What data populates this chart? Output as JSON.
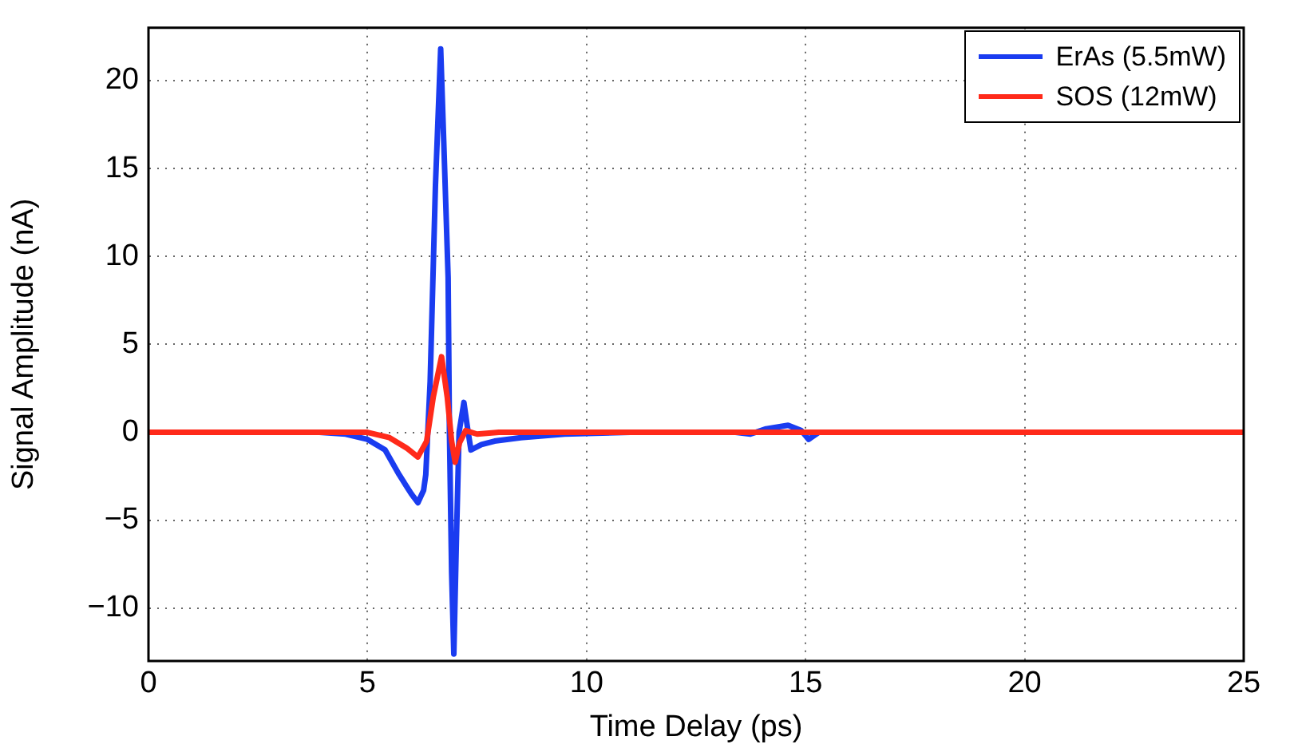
{
  "chart_data": {
    "type": "line",
    "xlabel": "Time Delay (ps)",
    "ylabel": "Signal Amplitude (nA)",
    "xlim": [
      0,
      25
    ],
    "xticks": [
      0,
      5,
      10,
      15,
      20,
      25
    ],
    "ylim": [
      -13,
      23
    ],
    "yticks": [
      -10,
      -5,
      0,
      5,
      10,
      15,
      20
    ],
    "grid": true,
    "legend": "top right",
    "marker": "none",
    "line_style": "solid",
    "series": [
      {
        "name": "ErAs (5.5mW)",
        "color": "#1a3cf0",
        "x": [
          0,
          3.9,
          4.5,
          5,
          5.4,
          5.72,
          6.0,
          6.15,
          6.28,
          6.33,
          6.43,
          6.55,
          6.67,
          6.76,
          6.84,
          6.87,
          6.92,
          6.97,
          7.03,
          7.09,
          7.2,
          7.28,
          7.36,
          7.6,
          7.9,
          8.5,
          9.5,
          11,
          13.4,
          13.74,
          14.1,
          14.6,
          14.9,
          15.07,
          15.3,
          16,
          25
        ],
        "values": [
          0,
          0,
          -0.1,
          -0.4,
          -1.0,
          -2.4,
          -3.5,
          -4,
          -3.3,
          -2.4,
          2.9,
          14,
          21.8,
          15,
          8.8,
          0,
          -8,
          -12.6,
          -6,
          0,
          1.7,
          0.3,
          -1,
          -0.7,
          -0.5,
          -0.3,
          -0.1,
          0,
          0,
          -0.1,
          0.2,
          0.4,
          0.1,
          -0.4,
          0,
          0,
          0
        ]
      },
      {
        "name": "SOS (12mW)",
        "color": "#ff2a1a",
        "x": [
          0,
          5,
          5.5,
          5.9,
          6.15,
          6.35,
          6.5,
          6.69,
          6.82,
          6.92,
          7.0,
          7.1,
          7.24,
          7.5,
          8,
          25
        ],
        "values": [
          0,
          0,
          -0.3,
          -0.9,
          -1.4,
          -0.5,
          2.0,
          4.3,
          2.0,
          -0.5,
          -1.7,
          -0.6,
          0.1,
          -0.1,
          0,
          0
        ]
      }
    ]
  }
}
